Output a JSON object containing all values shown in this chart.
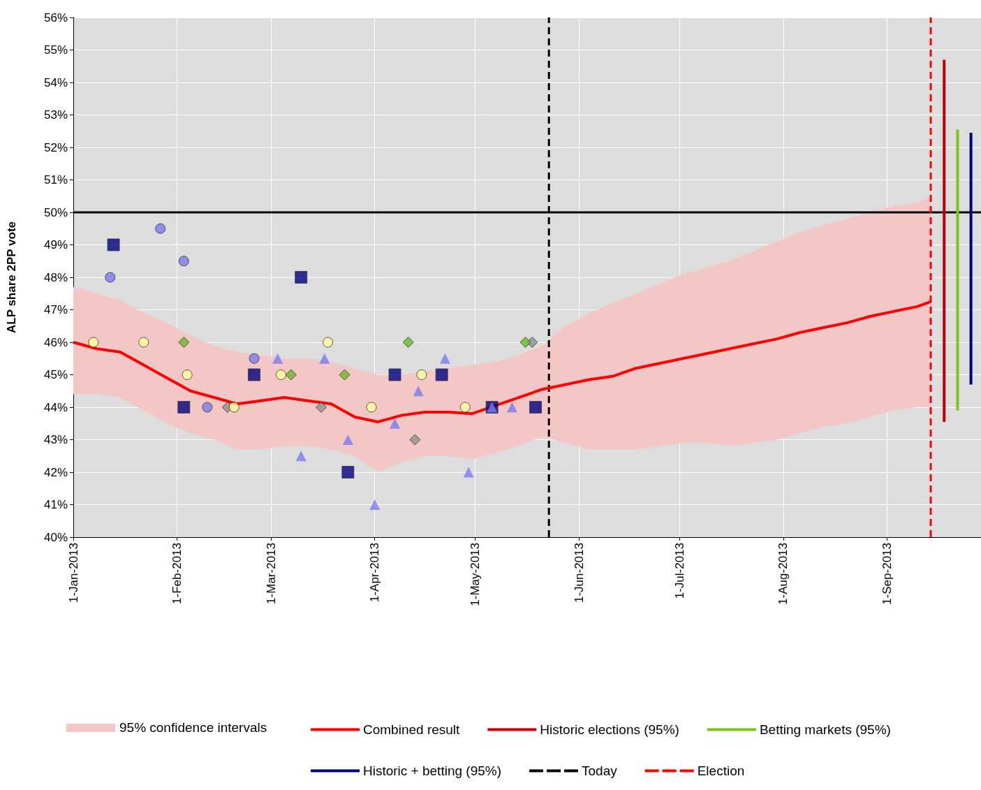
{
  "chart_data": {
    "type": "scatter",
    "ylabel": "ALP share 2PP vote",
    "xlim": [
      "2013-01-01",
      "2013-09-29"
    ],
    "xticks": [
      {
        "value": "2013-01-01",
        "label": "1-Jan-2013"
      },
      {
        "value": "2013-02-01",
        "label": "1-Feb-2013"
      },
      {
        "value": "2013-03-01",
        "label": "1-Mar-2013"
      },
      {
        "value": "2013-04-01",
        "label": "1-Apr-2013"
      },
      {
        "value": "2013-05-01",
        "label": "1-May-2013"
      },
      {
        "value": "2013-06-01",
        "label": "1-Jun-2013"
      },
      {
        "value": "2013-07-01",
        "label": "1-Jul-2013"
      },
      {
        "value": "2013-08-01",
        "label": "1-Aug-2013"
      },
      {
        "value": "2013-09-01",
        "label": "1-Sep-2013"
      }
    ],
    "ylim": [
      40,
      56
    ],
    "yticks": [
      {
        "value": 40,
        "label": "40%"
      },
      {
        "value": 41,
        "label": "41%"
      },
      {
        "value": 42,
        "label": "42%"
      },
      {
        "value": 43,
        "label": "43%"
      },
      {
        "value": 44,
        "label": "44%"
      },
      {
        "value": 45,
        "label": "45%"
      },
      {
        "value": 46,
        "label": "46%"
      },
      {
        "value": 47,
        "label": "47%"
      },
      {
        "value": 48,
        "label": "48%"
      },
      {
        "value": 49,
        "label": "49%"
      },
      {
        "value": 50,
        "label": "50%"
      },
      {
        "value": 51,
        "label": "51%"
      },
      {
        "value": 52,
        "label": "52%"
      },
      {
        "value": 53,
        "label": "53%"
      },
      {
        "value": 54,
        "label": "54%"
      },
      {
        "value": 55,
        "label": "55%"
      },
      {
        "value": 56,
        "label": "56%"
      }
    ],
    "grid": true,
    "legend": "bottom",
    "annotations": [
      "95% confidence intervals"
    ],
    "series": [
      {
        "type": "line",
        "name": "Combined result",
        "color": "#ff0000",
        "marker": "none",
        "line_style": "solid",
        "x": [
          "2013-01-01",
          "2013-01-08",
          "2013-01-15",
          "2013-01-22",
          "2013-01-29",
          "2013-02-05",
          "2013-02-12",
          "2013-02-19",
          "2013-02-26",
          "2013-03-05",
          "2013-03-12",
          "2013-03-19",
          "2013-03-26",
          "2013-04-02",
          "2013-04-09",
          "2013-04-16",
          "2013-04-23",
          "2013-04-30",
          "2013-05-07",
          "2013-05-14",
          "2013-05-21",
          "2013-05-28",
          "2013-06-04",
          "2013-06-11",
          "2013-06-18",
          "2013-06-25",
          "2013-07-02",
          "2013-07-09",
          "2013-07-16",
          "2013-07-23",
          "2013-07-30",
          "2013-08-06",
          "2013-08-13",
          "2013-08-20",
          "2013-08-27",
          "2013-09-03",
          "2013-09-10",
          "2013-09-14"
        ],
        "values": [
          46.0,
          45.8,
          45.7,
          45.3,
          44.9,
          44.5,
          44.3,
          44.1,
          44.2,
          44.3,
          44.2,
          44.1,
          43.7,
          43.55,
          43.75,
          43.85,
          43.85,
          43.8,
          44.05,
          44.3,
          44.55,
          44.7,
          44.85,
          44.95,
          45.2,
          45.35,
          45.5,
          45.65,
          45.8,
          45.95,
          46.1,
          46.3,
          46.45,
          46.6,
          46.8,
          46.95,
          47.1,
          47.25
        ],
        "upper": [
          47.7,
          47.5,
          47.3,
          46.9,
          46.6,
          46.2,
          45.9,
          45.7,
          45.6,
          45.5,
          45.5,
          45.4,
          45.2,
          45.0,
          45.0,
          45.1,
          45.2,
          45.3,
          45.4,
          45.6,
          45.9,
          46.5,
          46.9,
          47.2,
          47.5,
          47.8,
          48.1,
          48.3,
          48.5,
          48.8,
          49.1,
          49.4,
          49.6,
          49.8,
          50.0,
          50.2,
          50.3,
          50.5
        ],
        "lower": [
          44.4,
          44.4,
          44.3,
          43.9,
          43.5,
          43.2,
          43.0,
          42.7,
          42.7,
          42.8,
          42.8,
          42.7,
          42.5,
          42.0,
          42.3,
          42.5,
          42.5,
          42.4,
          42.6,
          42.8,
          43.1,
          42.9,
          42.7,
          42.7,
          42.7,
          42.8,
          42.9,
          42.9,
          42.8,
          42.9,
          43.0,
          43.2,
          43.4,
          43.5,
          43.7,
          43.9,
          44.0,
          44.0
        ]
      },
      {
        "color": "#000080",
        "marker": "square",
        "x": [
          "2013-01-13",
          "2013-02-03",
          "2013-02-24",
          "2013-03-10",
          "2013-03-24",
          "2013-04-07",
          "2013-04-21",
          "2013-05-06",
          "2013-05-19"
        ],
        "values": [
          49,
          44,
          45,
          48,
          42,
          45,
          45,
          44,
          44
        ]
      },
      {
        "color": "#7b7bf0",
        "marker": "triangle",
        "x": [
          "2013-03-03",
          "2013-03-10",
          "2013-03-17",
          "2013-03-24",
          "2013-04-01",
          "2013-04-07",
          "2013-04-14",
          "2013-04-22",
          "2013-04-29",
          "2013-05-06",
          "2013-05-12"
        ],
        "values": [
          45.5,
          42.5,
          45.5,
          43,
          41,
          43.5,
          44.5,
          45.5,
          42,
          44,
          44
        ]
      },
      {
        "color": "#7b7bf0",
        "marker": "circle",
        "x": [
          "2013-01-12",
          "2013-01-27",
          "2013-02-03",
          "2013-02-10",
          "2013-02-24"
        ],
        "values": [
          48,
          49.5,
          48.5,
          44,
          45.5
        ]
      },
      {
        "color": "#909090",
        "marker": "diamond",
        "x": [
          "2013-02-16",
          "2013-03-16",
          "2013-04-13",
          "2013-05-18"
        ],
        "values": [
          44,
          44,
          43,
          46
        ]
      },
      {
        "color": "#66bb22",
        "marker": "diamond",
        "x": [
          "2013-02-03",
          "2013-03-07",
          "2013-03-23",
          "2013-04-11",
          "2013-05-16"
        ],
        "values": [
          46,
          45,
          45,
          46,
          46
        ]
      },
      {
        "color": "#ffff99",
        "marker": "circle",
        "x": [
          "2013-01-07",
          "2013-01-22",
          "2013-02-04",
          "2013-02-18",
          "2013-03-04",
          "2013-03-18",
          "2013-03-31",
          "2013-04-15",
          "2013-04-28"
        ],
        "values": [
          46,
          46,
          45,
          44,
          45,
          46,
          44,
          45,
          44
        ]
      },
      {
        "type": "line",
        "name": "Historic elections (95%)",
        "color": "#c00000",
        "marker": "none",
        "line_style": "solid",
        "x": [
          "2013-09-18",
          "2013-09-18"
        ],
        "values": [
          43.55,
          54.7
        ]
      },
      {
        "type": "line",
        "name": "Betting markets (95%)",
        "color": "#7fc31c",
        "marker": "none",
        "line_style": "solid",
        "x": [
          "2013-09-22",
          "2013-09-22"
        ],
        "values": [
          43.9,
          52.55
        ]
      },
      {
        "type": "line",
        "name": "Historic + betting (95%)",
        "color": "#000080",
        "marker": "none",
        "line_style": "solid",
        "x": [
          "2013-09-26",
          "2013-09-26"
        ],
        "values": [
          44.7,
          52.45
        ]
      }
    ],
    "ref_lines": [
      {
        "axis": "y",
        "value": 50,
        "color": "#000000",
        "line_style": "solid"
      },
      {
        "axis": "x",
        "value": "2013-05-23",
        "label": "Today",
        "color": "#000000",
        "line_style": "dashed"
      },
      {
        "axis": "x",
        "value": "2013-09-14",
        "label": "Election",
        "color": "#ff0000",
        "line_style": "dashed"
      }
    ]
  }
}
